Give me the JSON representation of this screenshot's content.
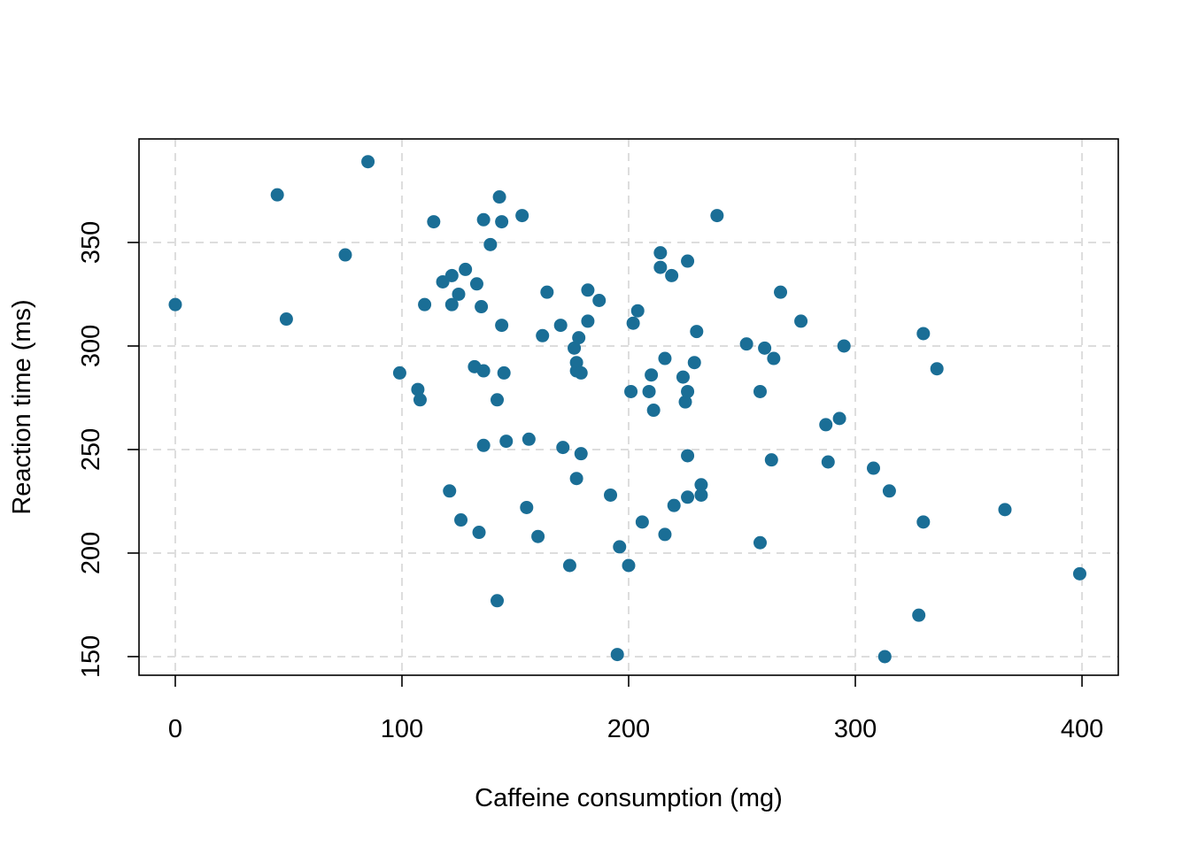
{
  "chart_data": {
    "type": "scatter",
    "title": "",
    "xlabel": "Caffeine consumption (mg)",
    "ylabel": "Reaction time (ms)",
    "xlim": [
      -16,
      416
    ],
    "ylim": [
      141,
      400
    ],
    "x_ticks": [
      0,
      100,
      200,
      300,
      400
    ],
    "y_ticks": [
      150,
      200,
      250,
      300,
      350
    ],
    "grid": true,
    "legend": "none",
    "colors": {
      "point": "#1A6E96",
      "grid": "#DDDDDD",
      "axis": "#000000"
    },
    "series": [
      {
        "points": [
          [
            0,
            320
          ],
          [
            45,
            373
          ],
          [
            49,
            313
          ],
          [
            75,
            344
          ],
          [
            85,
            389
          ],
          [
            99,
            287
          ],
          [
            107,
            279
          ],
          [
            108,
            274
          ],
          [
            110,
            320
          ],
          [
            114,
            360
          ],
          [
            118,
            331
          ],
          [
            121,
            230
          ],
          [
            122,
            334
          ],
          [
            122,
            320
          ],
          [
            125,
            325
          ],
          [
            126,
            216
          ],
          [
            128,
            337
          ],
          [
            132,
            290
          ],
          [
            133,
            330
          ],
          [
            134,
            210
          ],
          [
            135,
            319
          ],
          [
            136,
            288
          ],
          [
            136,
            252
          ],
          [
            136,
            361
          ],
          [
            139,
            349
          ],
          [
            142,
            177
          ],
          [
            142,
            274
          ],
          [
            143,
            372
          ],
          [
            144,
            360
          ],
          [
            144,
            310
          ],
          [
            145,
            287
          ],
          [
            146,
            254
          ],
          [
            153,
            363
          ],
          [
            155,
            222
          ],
          [
            156,
            255
          ],
          [
            160,
            208
          ],
          [
            162,
            305
          ],
          [
            164,
            326
          ],
          [
            170,
            310
          ],
          [
            171,
            251
          ],
          [
            174,
            194
          ],
          [
            176,
            299
          ],
          [
            177,
            236
          ],
          [
            177,
            292
          ],
          [
            177,
            288
          ],
          [
            178,
            304
          ],
          [
            179,
            287
          ],
          [
            179,
            248
          ],
          [
            182,
            327
          ],
          [
            182,
            312
          ],
          [
            187,
            322
          ],
          [
            192,
            228
          ],
          [
            195,
            151
          ],
          [
            196,
            203
          ],
          [
            200,
            194
          ],
          [
            201,
            278
          ],
          [
            202,
            311
          ],
          [
            204,
            317
          ],
          [
            206,
            215
          ],
          [
            209,
            278
          ],
          [
            210,
            286
          ],
          [
            211,
            269
          ],
          [
            214,
            345
          ],
          [
            214,
            338
          ],
          [
            216,
            294
          ],
          [
            216,
            209
          ],
          [
            219,
            334
          ],
          [
            220,
            223
          ],
          [
            224,
            285
          ],
          [
            225,
            273
          ],
          [
            226,
            341
          ],
          [
            226,
            278
          ],
          [
            226,
            247
          ],
          [
            226,
            227
          ],
          [
            229,
            292
          ],
          [
            230,
            307
          ],
          [
            232,
            233
          ],
          [
            232,
            228
          ],
          [
            239,
            363
          ],
          [
            252,
            301
          ],
          [
            258,
            278
          ],
          [
            258,
            205
          ],
          [
            260,
            299
          ],
          [
            263,
            245
          ],
          [
            264,
            294
          ],
          [
            267,
            326
          ],
          [
            276,
            312
          ],
          [
            287,
            262
          ],
          [
            288,
            244
          ],
          [
            293,
            265
          ],
          [
            295,
            300
          ],
          [
            308,
            241
          ],
          [
            315,
            230
          ],
          [
            313,
            150
          ],
          [
            328,
            170
          ],
          [
            330,
            306
          ],
          [
            330,
            215
          ],
          [
            336,
            289
          ],
          [
            366,
            221
          ],
          [
            399,
            190
          ]
        ]
      }
    ]
  }
}
